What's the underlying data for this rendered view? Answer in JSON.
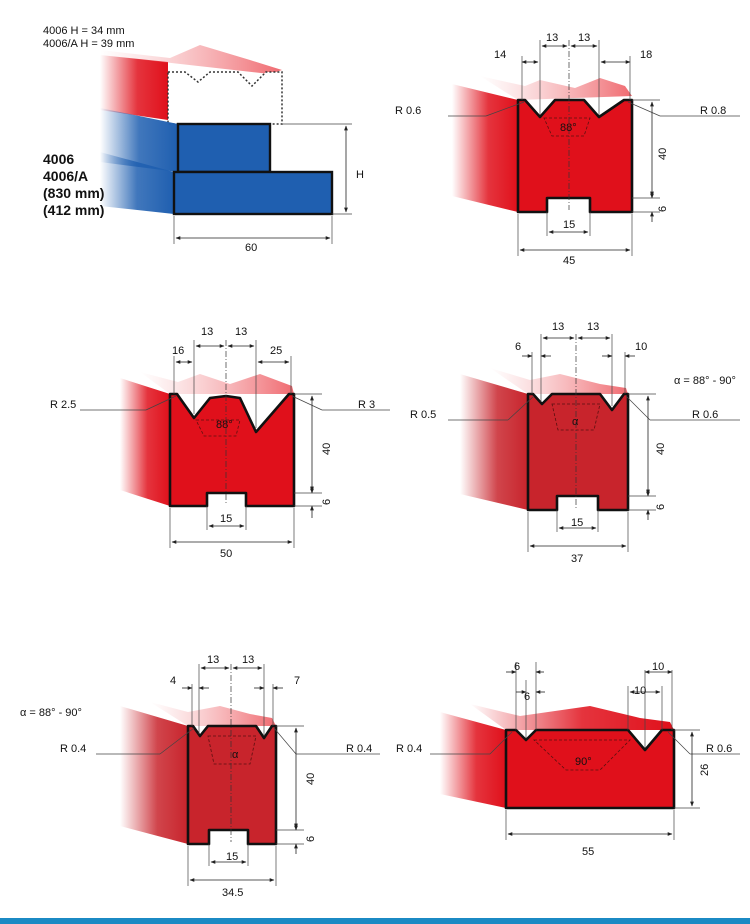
{
  "colors": {
    "red_die": "#e0101b",
    "dark_red_die": "#c8242c",
    "blue": "#1f5fb0",
    "footer_bar": "#1b8ac4"
  },
  "header": {
    "model_line1": "4006    H = 34 mm",
    "model_line2": "4006/A H = 39 mm"
  },
  "side_labels": {
    "line1": "4006",
    "line2": "4006/A",
    "line3": "(830 mm)",
    "line4": "(412 mm)"
  },
  "fig_holder": {
    "h_label": "H",
    "width": "60"
  },
  "fig1": {
    "d14": "14",
    "d13a": "13",
    "d13b": "13",
    "d18": "18",
    "r_left": "R 0.6",
    "r_right": "R 0.8",
    "angle": "88°",
    "height": "40",
    "foot": "6",
    "slot": "15",
    "width": "45"
  },
  "fig2": {
    "d16": "16",
    "d13a": "13",
    "d13b": "13",
    "d25": "25",
    "r_left": "R 2.5",
    "r_right": "R 3",
    "angle": "88°",
    "height": "40",
    "foot": "6",
    "slot": "15",
    "width": "50"
  },
  "fig3": {
    "d6": "6",
    "d13a": "13",
    "d13b": "13",
    "d10": "10",
    "alpha_note": "α = 88° - 90°",
    "r_left": "R 0.5",
    "r_right": "R 0.6",
    "angle": "α",
    "height": "40",
    "foot": "6",
    "slot": "15",
    "width": "37"
  },
  "fig4": {
    "d4": "4",
    "d13a": "13",
    "d13b": "13",
    "d7": "7",
    "alpha_note": "α = 88° - 90°",
    "r_left": "R 0.4",
    "r_right": "R 0.4",
    "angle": "α",
    "height": "40",
    "foot": "6",
    "slot": "15",
    "width": "34.5"
  },
  "fig5": {
    "d6a": "6",
    "d6b": "6",
    "d10a": "10",
    "d10b": "10",
    "r_left": "R 0.4",
    "r_right": "R 0.6",
    "angle": "90°",
    "height": "26",
    "width": "55"
  }
}
